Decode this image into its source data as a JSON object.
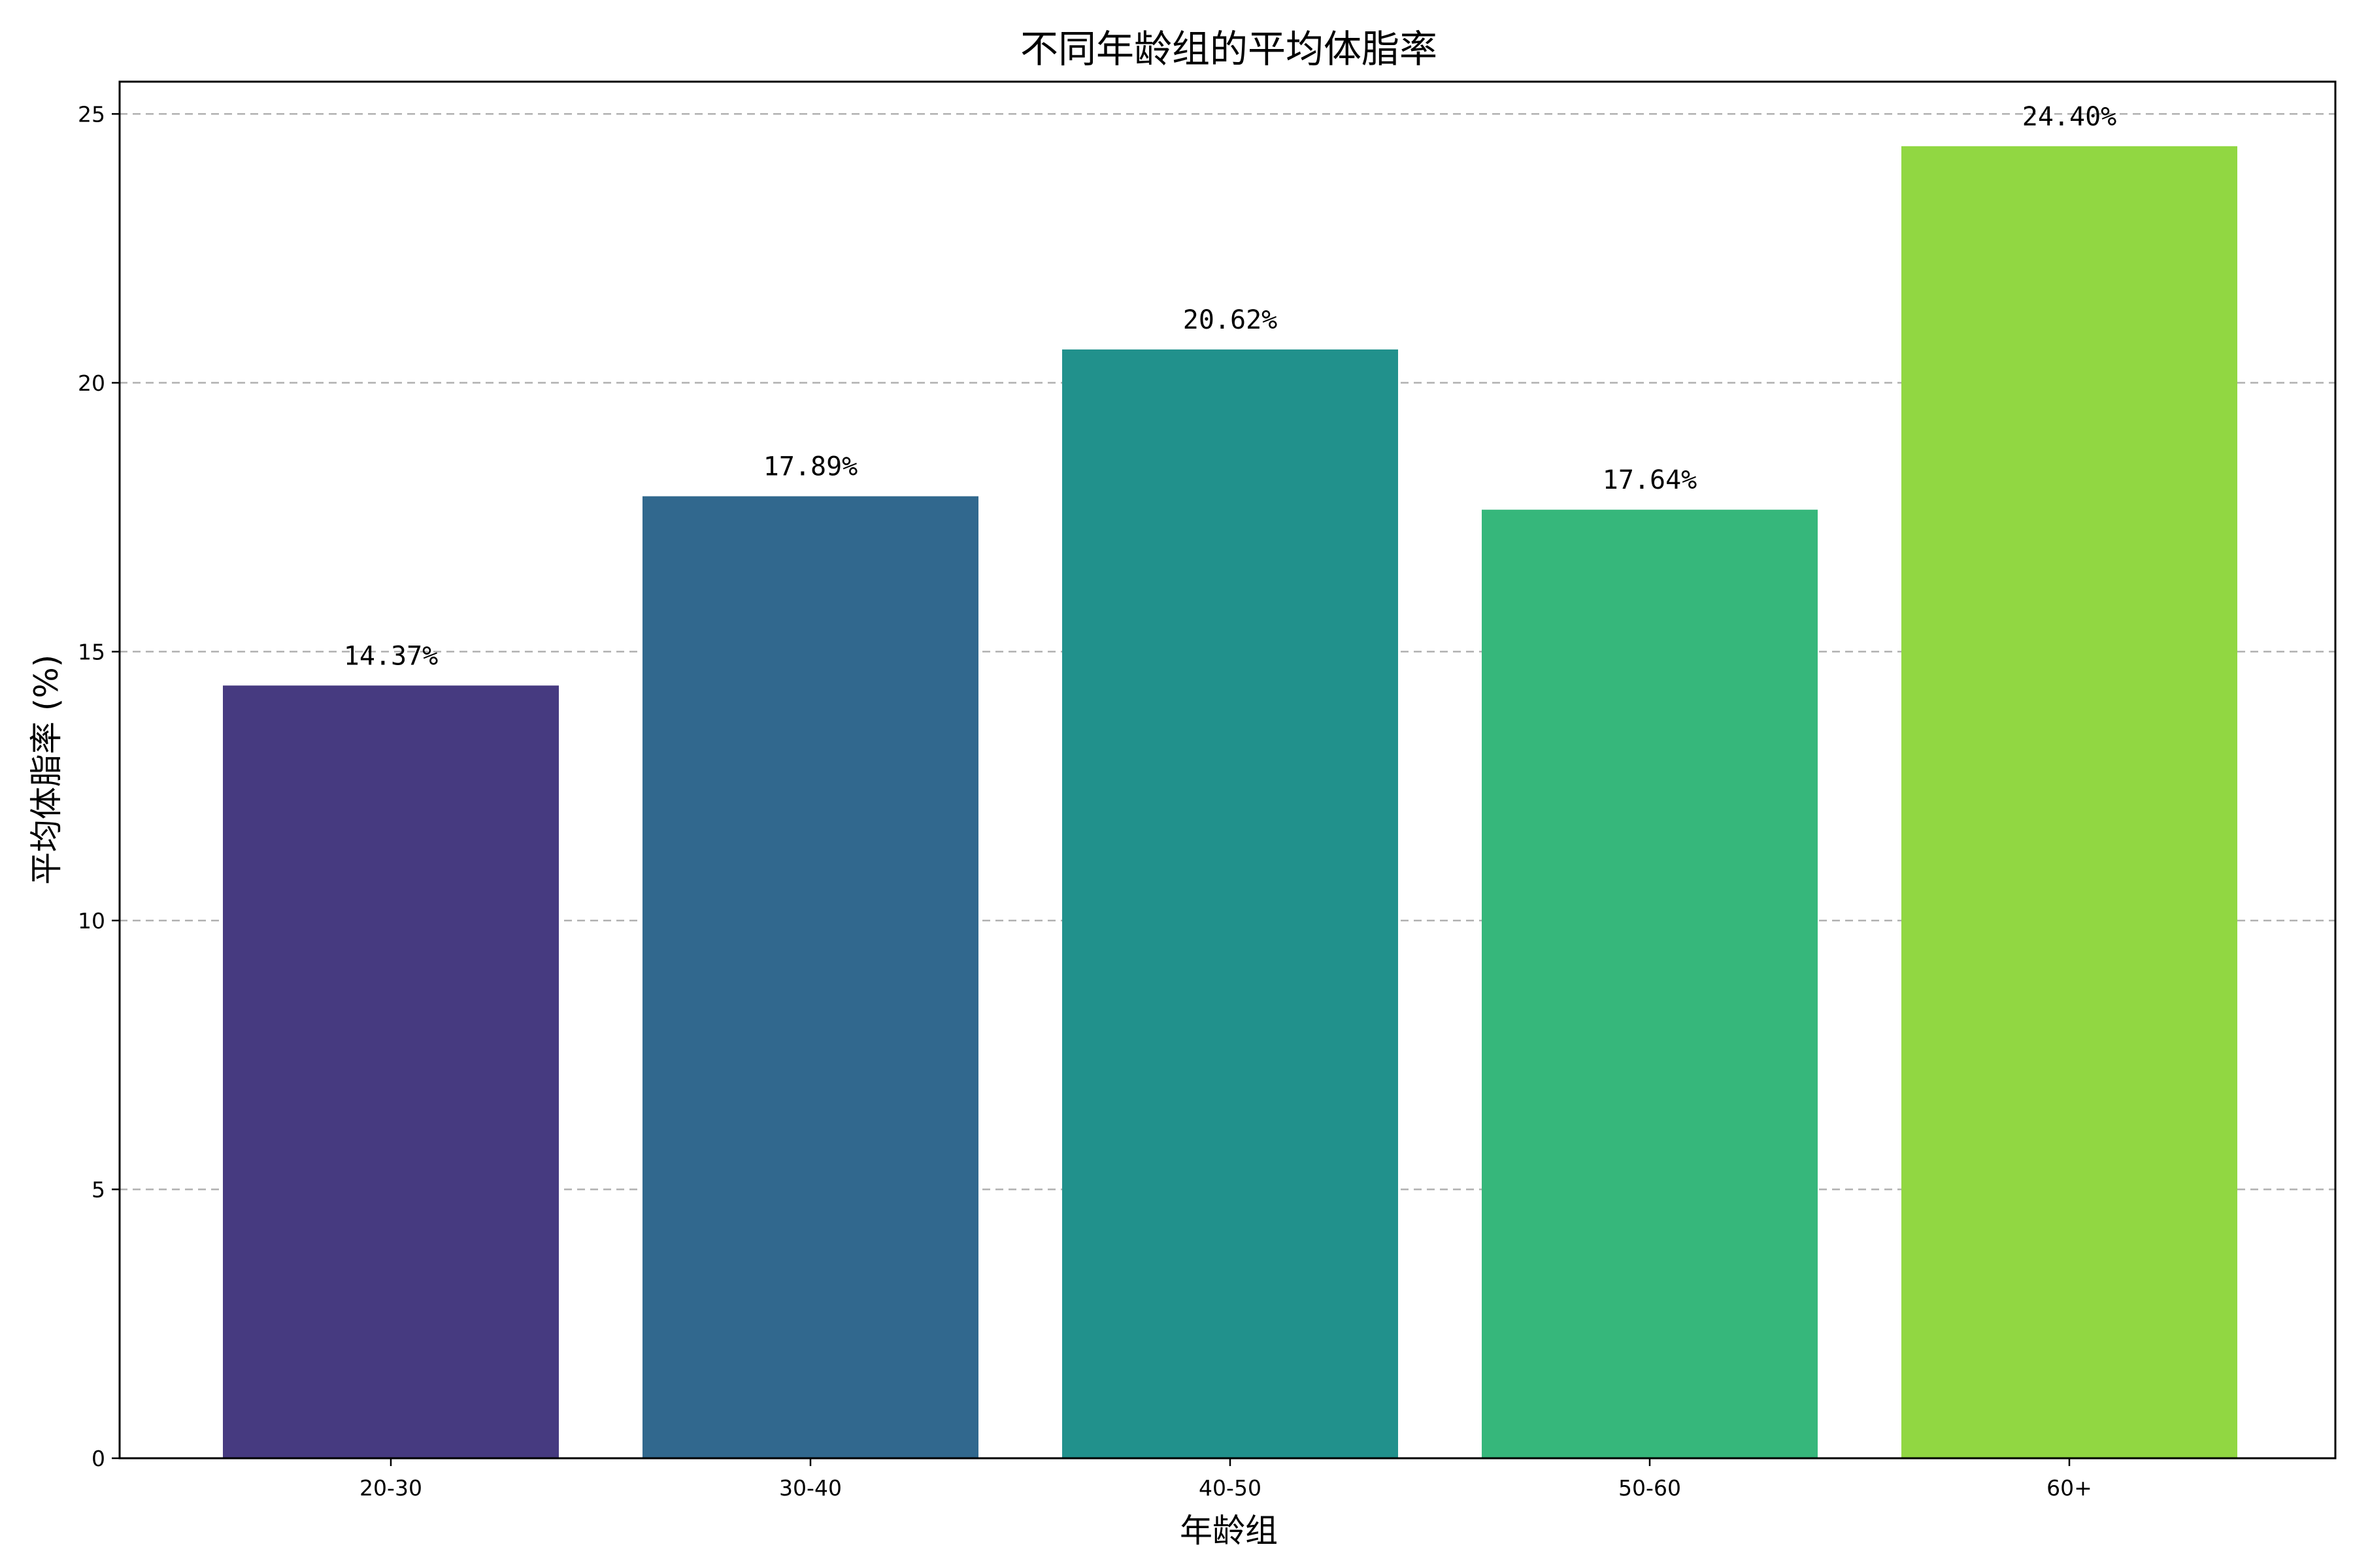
{
  "chart_data": {
    "type": "bar",
    "title": "不同年龄组的平均体脂率",
    "xlabel": "年龄组",
    "ylabel": "平均体脂率 (%)",
    "categories": [
      "20-30",
      "30-40",
      "40-50",
      "50-60",
      "60+"
    ],
    "values": [
      14.37,
      17.89,
      20.62,
      17.64,
      24.4
    ],
    "value_labels": [
      "14.37%",
      "17.89%",
      "20.62%",
      "17.64%",
      "24.40%"
    ],
    "colors": [
      "#463a80",
      "#31688e",
      "#21918c",
      "#36b77b",
      "#91d742"
    ],
    "ylim": [
      0,
      25.6
    ],
    "yticks": [
      0,
      5,
      10,
      15,
      20,
      25
    ],
    "grid": "y-dashed",
    "legend": "none"
  }
}
